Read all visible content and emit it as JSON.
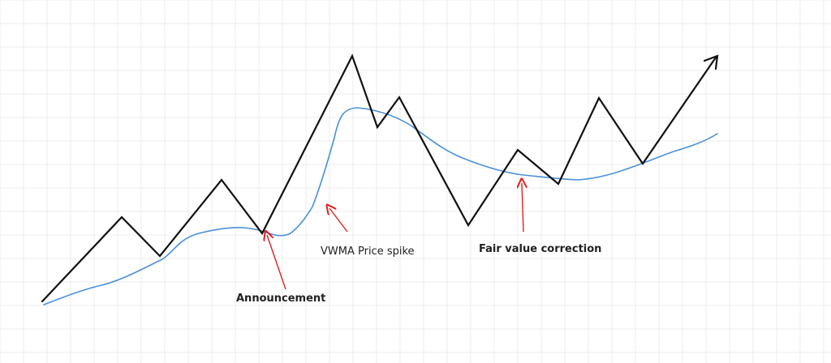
{
  "diagram": {
    "colors": {
      "background": "#ffffff",
      "grid": "#ececec",
      "price_line": "#111111",
      "vwma_line": "#4a90d9",
      "annotation_arrow": "#e02020",
      "label_text": "#222222"
    },
    "annotations": {
      "announcement": "Announcement",
      "vwma_spike": "VWMA Price spike",
      "fair_value": "Fair value correction"
    }
  }
}
